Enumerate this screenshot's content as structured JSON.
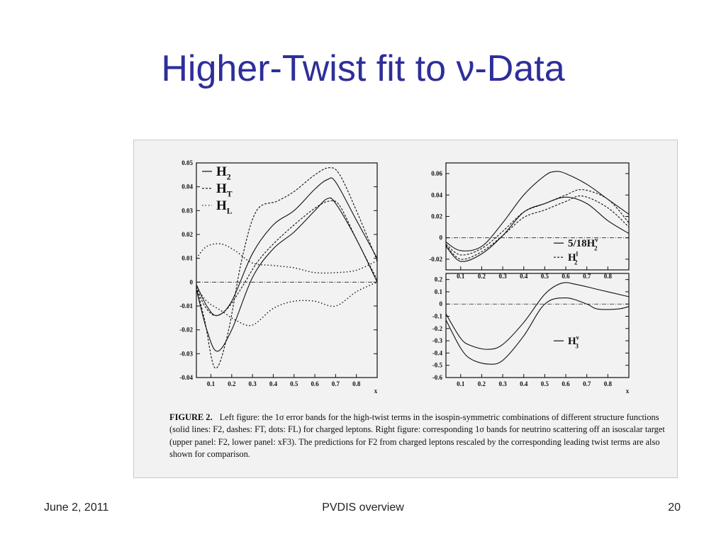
{
  "slide": {
    "title": "Higher-Twist fit to ν-Data",
    "footer_date": "June 2, 2011",
    "footer_center": "PVDIS overview",
    "footer_page": "20"
  },
  "caption": {
    "label": "FIGURE 2.",
    "text": "Left figure: the 1σ error bands for the high-twist terms in the isospin-symmetric combinations of different structure functions (solid lines: F2, dashes: FT, dots: FL) for charged leptons. Right figure: corresponding 1σ bands for neutrino scattering off an isoscalar target (upper panel: F2, lower panel: xF3). The predictions for F2 from charged leptons rescaled by the corresponding leading twist terms are also shown for comparison."
  },
  "chart_data": [
    {
      "type": "line",
      "panel": "left",
      "xlabel": "x",
      "xlim": [
        0.03,
        0.9
      ],
      "ylim": [
        -0.04,
        0.05
      ],
      "xticks": [
        0.1,
        0.2,
        0.3,
        0.4,
        0.5,
        0.6,
        0.7,
        0.8
      ],
      "yticks": [
        -0.04,
        -0.03,
        -0.02,
        -0.01,
        0,
        0.01,
        0.02,
        0.03,
        0.04,
        0.05
      ],
      "ytick_labels": [
        "-0.04",
        "-0.03",
        "-0.02",
        "-0.01",
        "0",
        "0.01",
        "0.02",
        "0.03",
        "0.04",
        "0.05"
      ],
      "legend_position": "top-left",
      "legend": [
        {
          "name": "H",
          "sub": "2",
          "style": "solid"
        },
        {
          "name": "H",
          "sub": "T",
          "style": "dashed"
        },
        {
          "name": "H",
          "sub": "L",
          "style": "dotted"
        }
      ],
      "series": [
        {
          "style": "solid",
          "x": [
            0.03,
            0.08,
            0.13,
            0.2,
            0.3,
            0.4,
            0.5,
            0.6,
            0.66,
            0.7,
            0.8,
            0.9
          ],
          "y": [
            -0.001,
            -0.01,
            -0.014,
            -0.008,
            0.012,
            0.024,
            0.03,
            0.039,
            0.043,
            0.042,
            0.026,
            0.01
          ]
        },
        {
          "style": "solid",
          "x": [
            0.03,
            0.08,
            0.13,
            0.2,
            0.3,
            0.4,
            0.5,
            0.6,
            0.66,
            0.7,
            0.8,
            0.9
          ],
          "y": [
            -0.003,
            -0.02,
            -0.029,
            -0.02,
            0.002,
            0.014,
            0.021,
            0.03,
            0.035,
            0.033,
            0.018,
            0.0
          ]
        },
        {
          "style": "dashed",
          "x": [
            0.03,
            0.07,
            0.12,
            0.18,
            0.25,
            0.32,
            0.42,
            0.5,
            0.6,
            0.67,
            0.72,
            0.8,
            0.9
          ],
          "y": [
            -0.002,
            -0.016,
            -0.036,
            -0.022,
            0.01,
            0.03,
            0.034,
            0.038,
            0.045,
            0.048,
            0.045,
            0.03,
            0.009
          ]
        },
        {
          "style": "dashed",
          "x": [
            0.03,
            0.07,
            0.12,
            0.18,
            0.25,
            0.32,
            0.4,
            0.5,
            0.6,
            0.67,
            0.72,
            0.8,
            0.9
          ],
          "y": [
            -0.002,
            -0.01,
            -0.014,
            -0.011,
            -0.002,
            0.008,
            0.016,
            0.024,
            0.031,
            0.034,
            0.032,
            0.018,
            0.001
          ]
        },
        {
          "style": "dotted",
          "x": [
            0.03,
            0.08,
            0.15,
            0.22,
            0.3,
            0.4,
            0.5,
            0.6,
            0.7,
            0.8,
            0.9
          ],
          "y": [
            0.01,
            0.015,
            0.016,
            0.013,
            0.008,
            0.007,
            0.006,
            0.004,
            0.004,
            0.005,
            0.009
          ]
        },
        {
          "style": "dotted",
          "x": [
            0.03,
            0.08,
            0.15,
            0.22,
            0.3,
            0.4,
            0.5,
            0.6,
            0.7,
            0.8,
            0.9
          ],
          "y": [
            -0.002,
            -0.008,
            -0.012,
            -0.016,
            -0.018,
            -0.011,
            -0.008,
            -0.008,
            -0.01,
            -0.004,
            0.0
          ]
        }
      ]
    },
    {
      "type": "line",
      "panel": "right-upper",
      "xlim": [
        0.03,
        0.9
      ],
      "ylim": [
        -0.03,
        0.07
      ],
      "xticks": [
        0.1,
        0.2,
        0.3,
        0.4,
        0.5,
        0.6,
        0.7,
        0.8
      ],
      "yticks": [
        -0.02,
        0,
        0.02,
        0.04,
        0.06
      ],
      "ytick_labels": [
        "-0.02",
        "0",
        "0.02",
        "0.04",
        "0.06"
      ],
      "legend_position": "bottom-right",
      "legend": [
        {
          "prefix": "5/18",
          "name": "H",
          "sup": "ν",
          "sub": "2",
          "style": "solid"
        },
        {
          "name": "H",
          "sup": "l",
          "sub": "2",
          "style": "dashed"
        }
      ],
      "series": [
        {
          "style": "solid",
          "x": [
            0.03,
            0.1,
            0.2,
            0.3,
            0.4,
            0.5,
            0.55,
            0.6,
            0.7,
            0.8,
            0.9
          ],
          "y": [
            -0.004,
            -0.012,
            -0.008,
            0.014,
            0.04,
            0.058,
            0.062,
            0.06,
            0.05,
            0.036,
            0.022
          ]
        },
        {
          "style": "solid",
          "x": [
            0.03,
            0.1,
            0.2,
            0.3,
            0.4,
            0.5,
            0.6,
            0.7,
            0.8,
            0.9
          ],
          "y": [
            -0.008,
            -0.022,
            -0.015,
            0.002,
            0.024,
            0.032,
            0.038,
            0.032,
            0.016,
            0.004
          ]
        },
        {
          "style": "dashed",
          "x": [
            0.03,
            0.1,
            0.2,
            0.3,
            0.4,
            0.5,
            0.6,
            0.68,
            0.8,
            0.9
          ],
          "y": [
            -0.006,
            -0.016,
            -0.01,
            0.006,
            0.024,
            0.032,
            0.04,
            0.045,
            0.036,
            0.014
          ]
        },
        {
          "style": "dashed",
          "x": [
            0.03,
            0.1,
            0.2,
            0.3,
            0.4,
            0.5,
            0.6,
            0.68,
            0.8,
            0.9
          ],
          "y": [
            -0.007,
            -0.02,
            -0.013,
            0.002,
            0.019,
            0.026,
            0.034,
            0.039,
            0.028,
            0.01
          ]
        }
      ]
    },
    {
      "type": "line",
      "panel": "right-lower",
      "xlabel": "x",
      "xlim": [
        0.03,
        0.9
      ],
      "ylim": [
        -0.6,
        0.25
      ],
      "xticks": [
        0.1,
        0.2,
        0.3,
        0.4,
        0.5,
        0.6,
        0.7,
        0.8
      ],
      "yticks": [
        -0.6,
        -0.5,
        -0.4,
        -0.3,
        -0.2,
        -0.1,
        0,
        0.1,
        0.2
      ],
      "ytick_labels": [
        "-0.6",
        "-0.5",
        "-0.4",
        "-0.3",
        "-0.2",
        "-0.1",
        "0",
        "0.1",
        "0.2"
      ],
      "legend_position": "bottom-right",
      "legend": [
        {
          "name": "H",
          "sup": "ν",
          "sub": "3",
          "style": "solid"
        }
      ],
      "series": [
        {
          "style": "solid",
          "x": [
            0.03,
            0.1,
            0.15,
            0.23,
            0.3,
            0.4,
            0.5,
            0.58,
            0.65,
            0.75,
            0.9
          ],
          "y": [
            -0.08,
            -0.28,
            -0.34,
            -0.37,
            -0.33,
            -0.15,
            0.08,
            0.17,
            0.16,
            0.12,
            0.06
          ]
        },
        {
          "style": "solid",
          "x": [
            0.03,
            0.1,
            0.15,
            0.23,
            0.3,
            0.4,
            0.5,
            0.6,
            0.7,
            0.75,
            0.85,
            0.9
          ],
          "y": [
            -0.13,
            -0.36,
            -0.45,
            -0.49,
            -0.46,
            -0.26,
            0.0,
            0.05,
            0.0,
            -0.04,
            -0.04,
            -0.02
          ]
        }
      ]
    }
  ]
}
